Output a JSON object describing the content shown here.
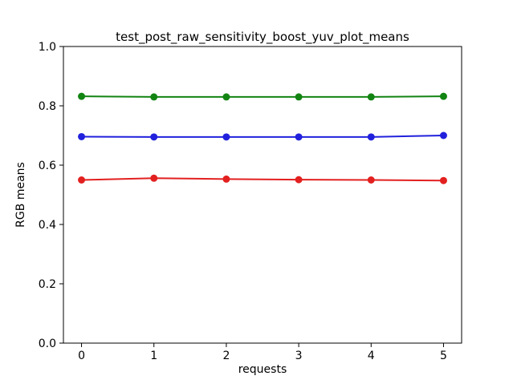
{
  "chart_data": {
    "type": "line",
    "title": "test_post_raw_sensitivity_boost_yuv_plot_means",
    "xlabel": "requests",
    "ylabel": "RGB means",
    "xlim": [
      -0.25,
      5.25
    ],
    "ylim": [
      0.0,
      1.0
    ],
    "grid": false,
    "legend": "none",
    "x": [
      0,
      1,
      2,
      3,
      4,
      5
    ],
    "x_ticks": {
      "values": [
        0,
        1,
        2,
        3,
        4,
        5
      ],
      "labels": [
        "0",
        "1",
        "2",
        "3",
        "4",
        "5"
      ]
    },
    "y_ticks": {
      "values": [
        0.0,
        0.2,
        0.4,
        0.6,
        0.8,
        1.0
      ],
      "labels": [
        "0.0",
        "0.2",
        "0.4",
        "0.6",
        "0.8",
        "1.0"
      ]
    },
    "series": [
      {
        "name": "green",
        "color": "#128412",
        "marker": "circle",
        "values": [
          0.832,
          0.83,
          0.83,
          0.83,
          0.83,
          0.832
        ]
      },
      {
        "name": "blue",
        "color": "#2121dd",
        "marker": "circle",
        "values": [
          0.696,
          0.695,
          0.695,
          0.695,
          0.695,
          0.7
        ]
      },
      {
        "name": "red",
        "color": "#e32020",
        "marker": "circle",
        "values": [
          0.55,
          0.556,
          0.553,
          0.551,
          0.55,
          0.548
        ]
      }
    ]
  }
}
